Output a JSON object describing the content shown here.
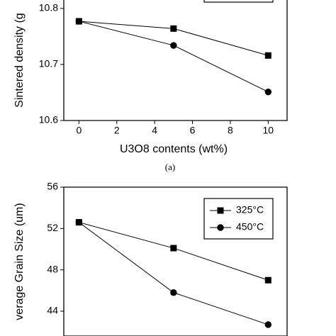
{
  "chart_data": [
    {
      "type": "line",
      "y_label": "Sintered density (g",
      "x_label": "U3O8 contents (wt%)",
      "caption": "(a)",
      "x": [
        0,
        5,
        10
      ],
      "xlim": [
        -0.8,
        11
      ],
      "xticks": [
        0,
        2,
        4,
        6,
        8,
        10
      ],
      "ylim": [
        10.6,
        10.815
      ],
      "yticks": [
        10.6,
        10.7,
        10.8
      ],
      "series": [
        {
          "marker": "square",
          "color": "#000000",
          "values": [
            10.777,
            10.764,
            10.716
          ]
        },
        {
          "marker": "circle",
          "color": "#000000",
          "values": [
            10.777,
            10.734,
            10.651
          ]
        }
      ]
    },
    {
      "type": "line",
      "y_label": "verage Grain Size (um)",
      "legend": "top-right",
      "x": [
        0,
        5,
        10
      ],
      "xlim": [
        -0.8,
        11
      ],
      "ylim": [
        41.6,
        56
      ],
      "yticks": [
        44,
        48,
        52,
        56
      ],
      "series": [
        {
          "name": "325°C",
          "marker": "square",
          "color": "#000000",
          "values": [
            52.6,
            50.1,
            47.0
          ]
        },
        {
          "name": "450°C",
          "marker": "circle",
          "color": "#000000",
          "values": [
            52.6,
            45.8,
            42.7
          ]
        }
      ]
    }
  ]
}
